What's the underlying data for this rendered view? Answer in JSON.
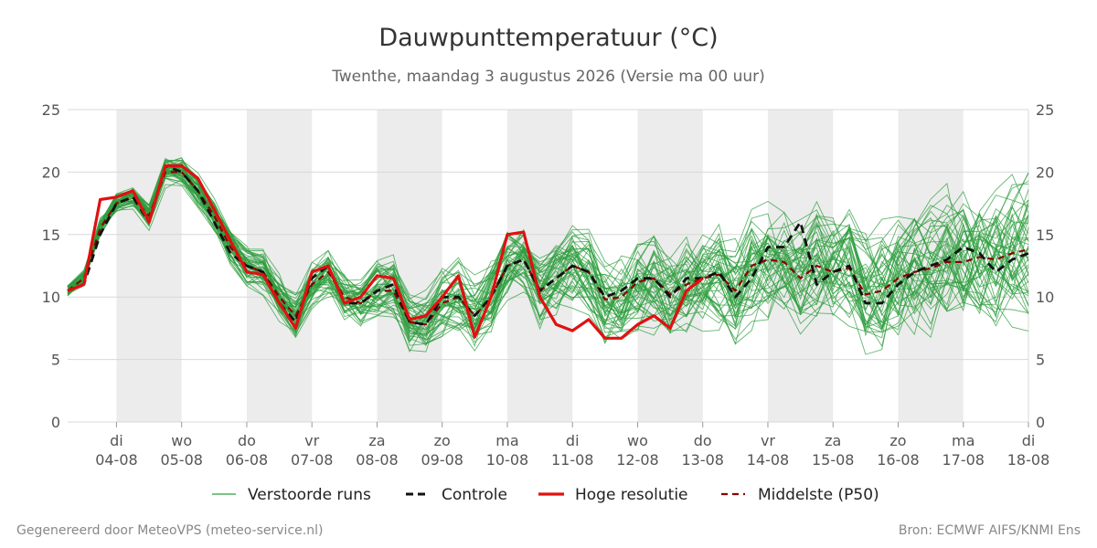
{
  "chart_data": {
    "type": "line",
    "title": "Dauwpunttemperatuur (°C)",
    "subtitle": "Twenthe, maandag  3 augustus 2026 (Versie ma 00 uur)",
    "ylim": [
      0,
      25
    ],
    "y_ticks": [
      0,
      5,
      10,
      15,
      20,
      25
    ],
    "x_range": [
      "2026-08-03T06:00",
      "2026-08-18T00:00"
    ],
    "x_ticks": [
      {
        "day": "di",
        "date": "04-08"
      },
      {
        "day": "wo",
        "date": "05-08"
      },
      {
        "day": "do",
        "date": "06-08"
      },
      {
        "day": "vr",
        "date": "07-08"
      },
      {
        "day": "za",
        "date": "08-08"
      },
      {
        "day": "zo",
        "date": "09-08"
      },
      {
        "day": "ma",
        "date": "10-08"
      },
      {
        "day": "di",
        "date": "11-08"
      },
      {
        "day": "wo",
        "date": "12-08"
      },
      {
        "day": "do",
        "date": "13-08"
      },
      {
        "day": "vr",
        "date": "14-08"
      },
      {
        "day": "za",
        "date": "15-08"
      },
      {
        "day": "zo",
        "date": "16-08"
      },
      {
        "day": "ma",
        "date": "17-08"
      },
      {
        "day": "di",
        "date": "18-08"
      }
    ],
    "shaded_days": [
      "04-08",
      "06-08",
      "08-08",
      "10-08",
      "12-08",
      "14-08",
      "16-08"
    ],
    "grid": true,
    "legend_position": "bottom",
    "ensemble_members": 50,
    "series": [
      {
        "name": "Controle",
        "color": "#111111",
        "style": "dashed",
        "x": [
          "2026-08-03T06:00",
          "2026-08-03T12:00",
          "2026-08-03T18:00",
          "2026-08-04T00:00",
          "2026-08-04T06:00",
          "2026-08-04T12:00",
          "2026-08-04T18:00",
          "2026-08-05T00:00",
          "2026-08-05T06:00",
          "2026-08-05T12:00",
          "2026-08-05T18:00",
          "2026-08-06T00:00",
          "2026-08-06T06:00",
          "2026-08-06T12:00",
          "2026-08-06T18:00",
          "2026-08-07T00:00",
          "2026-08-07T06:00",
          "2026-08-07T12:00",
          "2026-08-07T18:00",
          "2026-08-08T00:00",
          "2026-08-08T06:00",
          "2026-08-08T12:00",
          "2026-08-08T18:00",
          "2026-08-09T00:00",
          "2026-08-09T06:00",
          "2026-08-09T12:00",
          "2026-08-09T18:00",
          "2026-08-10T00:00",
          "2026-08-10T06:00",
          "2026-08-10T12:00",
          "2026-08-10T18:00",
          "2026-08-11T00:00",
          "2026-08-11T06:00",
          "2026-08-11T12:00",
          "2026-08-11T18:00",
          "2026-08-12T00:00",
          "2026-08-12T06:00",
          "2026-08-12T12:00",
          "2026-08-12T18:00",
          "2026-08-13T00:00",
          "2026-08-13T06:00",
          "2026-08-13T12:00",
          "2026-08-13T18:00",
          "2026-08-14T00:00",
          "2026-08-14T06:00",
          "2026-08-14T12:00",
          "2026-08-14T18:00",
          "2026-08-15T00:00",
          "2026-08-15T06:00",
          "2026-08-15T12:00",
          "2026-08-15T18:00",
          "2026-08-16T00:00",
          "2026-08-16T06:00",
          "2026-08-16T12:00",
          "2026-08-16T18:00",
          "2026-08-17T00:00",
          "2026-08-17T06:00",
          "2026-08-17T12:00",
          "2026-08-17T18:00",
          "2026-08-18T00:00"
        ],
        "values": [
          10.5,
          11.0,
          15.0,
          17.5,
          18.0,
          16.0,
          20.5,
          20.0,
          18.5,
          16.0,
          13.5,
          12.5,
          12.0,
          9.5,
          8.0,
          11.5,
          12.5,
          9.5,
          9.5,
          10.5,
          11.0,
          8.0,
          7.8,
          10.0,
          10.0,
          8.5,
          10.0,
          12.5,
          13.0,
          10.5,
          11.5,
          12.5,
          12.0,
          10.0,
          10.5,
          11.5,
          11.5,
          10.0,
          11.5,
          11.5,
          12.0,
          10.0,
          11.5,
          14.0,
          14.0,
          16.0,
          11.0,
          12.0,
          12.5,
          9.5,
          9.5,
          11.0,
          12.0,
          12.5,
          13.0,
          14.0,
          13.5,
          12.0,
          13.0,
          13.5
        ]
      },
      {
        "name": "Hoge resolutie",
        "color": "#e01010",
        "style": "solid",
        "x": [
          "2026-08-03T06:00",
          "2026-08-03T12:00",
          "2026-08-03T18:00",
          "2026-08-04T00:00",
          "2026-08-04T06:00",
          "2026-08-04T12:00",
          "2026-08-04T18:00",
          "2026-08-05T00:00",
          "2026-08-05T06:00",
          "2026-08-05T12:00",
          "2026-08-05T18:00",
          "2026-08-06T00:00",
          "2026-08-06T06:00",
          "2026-08-06T12:00",
          "2026-08-06T18:00",
          "2026-08-07T00:00",
          "2026-08-07T06:00",
          "2026-08-07T12:00",
          "2026-08-07T18:00",
          "2026-08-08T00:00",
          "2026-08-08T06:00",
          "2026-08-08T12:00",
          "2026-08-08T18:00",
          "2026-08-09T00:00",
          "2026-08-09T06:00",
          "2026-08-09T12:00",
          "2026-08-09T18:00",
          "2026-08-10T00:00",
          "2026-08-10T06:00",
          "2026-08-10T12:00",
          "2026-08-10T18:00",
          "2026-08-11T00:00",
          "2026-08-11T06:00",
          "2026-08-11T12:00",
          "2026-08-11T18:00",
          "2026-08-12T00:00",
          "2026-08-12T06:00",
          "2026-08-12T12:00",
          "2026-08-12T18:00",
          "2026-08-13T00:00"
        ],
        "values": [
          10.5,
          11.0,
          17.8,
          18.0,
          18.5,
          16.0,
          20.5,
          20.5,
          19.5,
          17.0,
          14.5,
          12.0,
          11.8,
          9.5,
          7.5,
          12.0,
          12.5,
          9.5,
          10.0,
          11.7,
          11.5,
          8.2,
          8.5,
          10.0,
          11.7,
          6.8,
          10.0,
          15.0,
          15.2,
          10.0,
          7.8,
          7.3,
          8.2,
          6.7,
          6.7,
          7.8,
          8.5,
          7.5,
          10.5,
          11.5
        ]
      },
      {
        "name": "Middelste (P50)",
        "color": "#8b0000",
        "style": "dashed",
        "x": [
          "2026-08-03T06:00",
          "2026-08-03T12:00",
          "2026-08-03T18:00",
          "2026-08-04T00:00",
          "2026-08-04T06:00",
          "2026-08-04T12:00",
          "2026-08-04T18:00",
          "2026-08-05T00:00",
          "2026-08-05T06:00",
          "2026-08-05T12:00",
          "2026-08-05T18:00",
          "2026-08-06T00:00",
          "2026-08-06T06:00",
          "2026-08-06T12:00",
          "2026-08-06T18:00",
          "2026-08-07T00:00",
          "2026-08-07T06:00",
          "2026-08-07T12:00",
          "2026-08-07T18:00",
          "2026-08-08T00:00",
          "2026-08-08T06:00",
          "2026-08-08T12:00",
          "2026-08-08T18:00",
          "2026-08-09T00:00",
          "2026-08-09T06:00",
          "2026-08-09T12:00",
          "2026-08-09T18:00",
          "2026-08-10T00:00",
          "2026-08-10T06:00",
          "2026-08-10T12:00",
          "2026-08-10T18:00",
          "2026-08-11T00:00",
          "2026-08-11T06:00",
          "2026-08-11T12:00",
          "2026-08-11T18:00",
          "2026-08-12T00:00",
          "2026-08-12T06:00",
          "2026-08-12T12:00",
          "2026-08-12T18:00",
          "2026-08-13T00:00",
          "2026-08-13T06:00",
          "2026-08-13T12:00",
          "2026-08-13T18:00",
          "2026-08-14T00:00",
          "2026-08-14T06:00",
          "2026-08-14T12:00",
          "2026-08-14T18:00",
          "2026-08-15T00:00",
          "2026-08-15T06:00",
          "2026-08-15T12:00",
          "2026-08-15T18:00",
          "2026-08-16T00:00",
          "2026-08-16T06:00",
          "2026-08-16T12:00",
          "2026-08-16T18:00",
          "2026-08-17T00:00",
          "2026-08-17T06:00",
          "2026-08-17T12:00",
          "2026-08-17T18:00",
          "2026-08-18T00:00"
        ],
        "values": [
          10.5,
          11.5,
          15.5,
          17.5,
          18.0,
          16.5,
          20.0,
          20.0,
          18.5,
          16.5,
          14.0,
          12.5,
          12.0,
          10.0,
          8.5,
          11.0,
          12.0,
          10.0,
          9.5,
          10.5,
          10.5,
          8.0,
          7.8,
          9.5,
          10.0,
          8.5,
          10.0,
          12.5,
          13.0,
          10.5,
          11.5,
          12.5,
          12.0,
          9.8,
          10.0,
          11.2,
          11.5,
          10.2,
          11.0,
          11.5,
          11.8,
          10.5,
          12.5,
          13.0,
          12.8,
          11.5,
          12.5,
          12.0,
          12.3,
          10.2,
          10.5,
          11.5,
          12.0,
          12.3,
          12.8,
          12.8,
          13.2,
          13.0,
          13.5,
          13.8
        ]
      }
    ]
  },
  "legend": {
    "perturbed": "Verstoorde runs",
    "control": "Controle",
    "high_res": "Hoge resolutie",
    "median": "Middelste (P50)"
  },
  "footer": {
    "left": "Gegenereerd door MeteoVPS (meteo-service.nl)",
    "right": "Bron: ECMWF AIFS/KNMI Ens"
  },
  "colors": {
    "ensemble": "#2e9e3e",
    "control": "#111111",
    "high_res": "#e01010",
    "median": "#8b0000",
    "shade": "#ececec",
    "grid": "#d8d8d8"
  }
}
